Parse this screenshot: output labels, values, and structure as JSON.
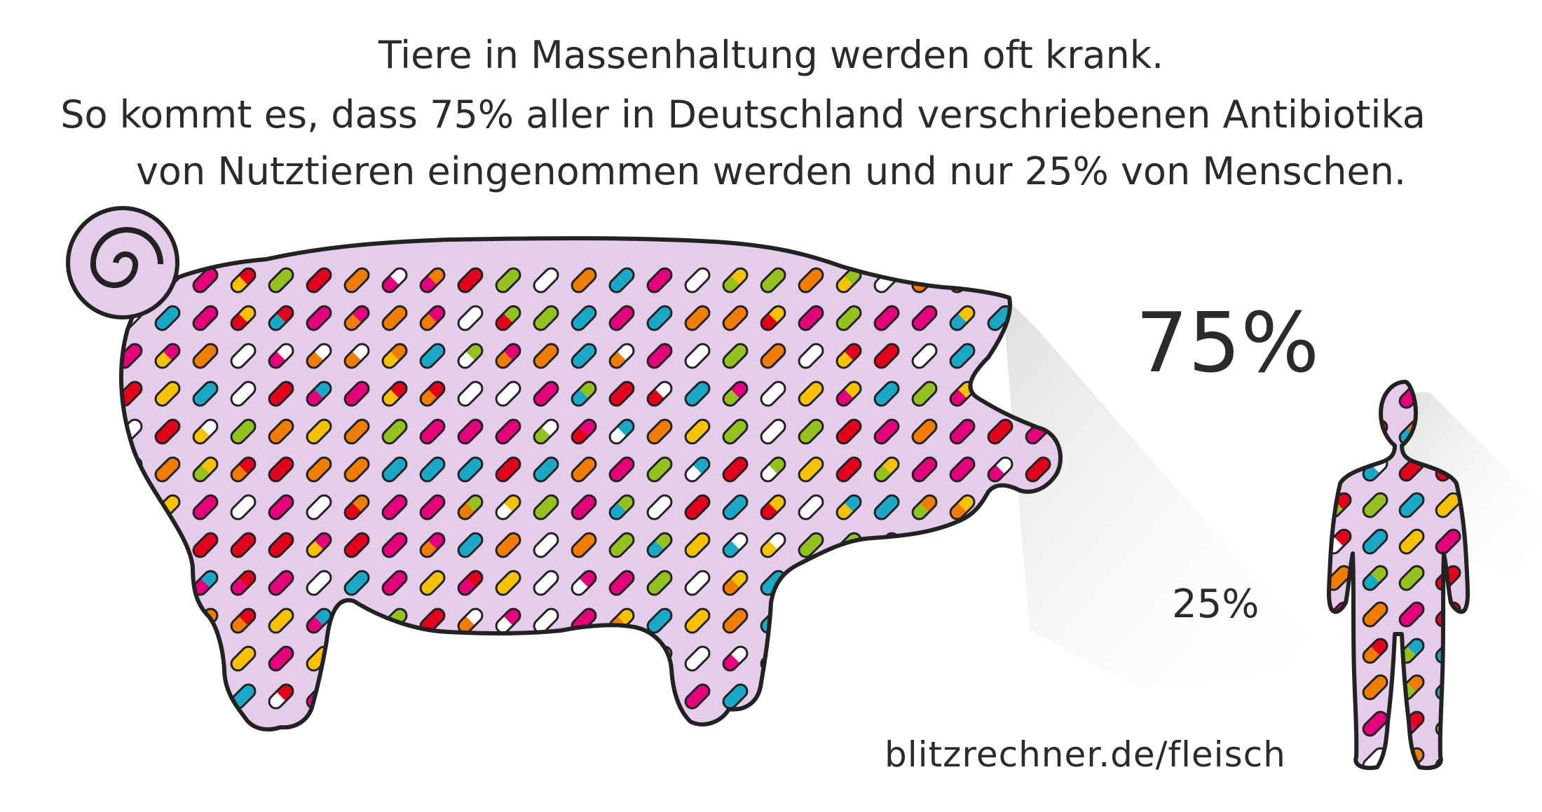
{
  "headline": {
    "line1": "Tiere in Massenhaltung werden oft krank.",
    "line2": "So kommt es, dass 75% aller in Deutschland verschriebenen Antibiotika",
    "line3": "von Nutztieren eingenommen werden und nur 25% von Menschen."
  },
  "stats": {
    "animals_label": "75%",
    "humans_label": "25%",
    "animals_share": 0.75,
    "humans_share": 0.25
  },
  "source": "blitzrechner.de/fleisch",
  "colors": {
    "silhouette_fill": "#e3cdea",
    "outline": "#222222",
    "shadow": "#e8e8e8",
    "pills": [
      "#e3007a",
      "#e2001a",
      "#f7c300",
      "#ef7d00",
      "#95c11f",
      "#19a9c7",
      "#ffffff"
    ]
  },
  "icons": [
    "pig-silhouette",
    "person-silhouette",
    "pill-capsule"
  ]
}
